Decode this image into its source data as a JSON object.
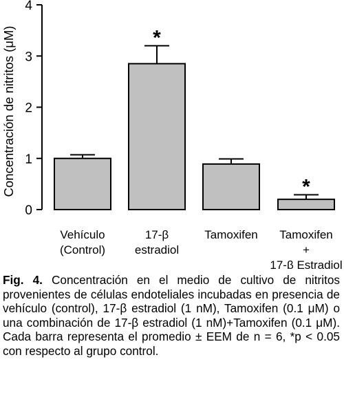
{
  "chart_data": {
    "type": "bar",
    "ylabel": "Concentración de nitritos (μM)",
    "xlabel": "",
    "ylim": [
      0,
      4
    ],
    "yticks": [
      0,
      1,
      2,
      3,
      4
    ],
    "grid": false,
    "categories": [
      [
        "Vehículo",
        "(Control)"
      ],
      [
        "17-β",
        "estradiol"
      ],
      [
        "Tamoxifen"
      ],
      [
        "Tamoxifen",
        "+",
        "17-β Estradiol"
      ]
    ],
    "values": [
      1.0,
      2.85,
      0.89,
      0.2
    ],
    "errors": [
      0.07,
      0.35,
      0.1,
      0.09
    ],
    "significance": [
      "",
      "*",
      "",
      "*"
    ],
    "bar_color": "#c0c0c0"
  },
  "caption": {
    "label": "Fig. 4.",
    "text": "Concentración en el medio de cultivo de nitritos provenientes de células endoteliales incubadas en presencia de vehículo (control), 17-β estradiol (1 nM), Tamoxifen (0.1 μM) o una combinación de 17-β estradiol (1 nM)+Tamoxifen (0.1 μM). Cada barra representa el promedio ± EEM de n = 6, *p < 0.05 con respecto al grupo control."
  }
}
